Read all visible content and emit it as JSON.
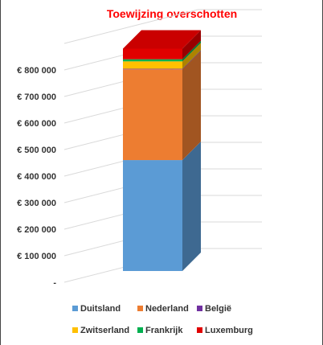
{
  "chart_data": {
    "type": "bar",
    "stacked": true,
    "three_d": true,
    "title": "Toewijzing overschotten",
    "xlabel": "",
    "ylabel": "",
    "categories": [
      ""
    ],
    "series": [
      {
        "name": "Duitsland",
        "values": [
          418000
        ],
        "color": "#5b9bd5"
      },
      {
        "name": "Nederland",
        "values": [
          342000
        ],
        "color": "#ed7d31"
      },
      {
        "name": "België",
        "values": [
          2000
        ],
        "color": "#7030a0"
      },
      {
        "name": "Zwitserland",
        "values": [
          28000
        ],
        "color": "#ffc000"
      },
      {
        "name": "Frankrijk",
        "values": [
          8000
        ],
        "color": "#00b050"
      },
      {
        "name": "Luxemburg",
        "values": [
          40000
        ],
        "color": "#e00000"
      }
    ],
    "ylim": [
      0,
      900000
    ],
    "yticks": [
      0,
      100000,
      200000,
      300000,
      400000,
      500000,
      600000,
      700000,
      800000
    ],
    "ytick_labels": [
      "-",
      "€ 100 000",
      "€ 200 000",
      "€ 300 000",
      "€ 400 000",
      "€ 500 000",
      "€ 600 000",
      "€ 700 000",
      "€ 800 000"
    ],
    "grid": true,
    "legend_position": "bottom"
  }
}
